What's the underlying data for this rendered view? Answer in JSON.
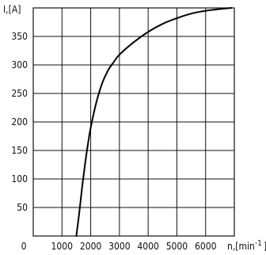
{
  "chart_data": {
    "type": "line",
    "title": "",
    "ylabel": "I,[A]",
    "xlabel": "n,[min",
    "xlabel_sup": "-1",
    "xlabel_close": "]",
    "xlim": [
      0,
      7000
    ],
    "ylim": [
      0,
      400
    ],
    "origin_label": "0",
    "x_ticks": [
      1000,
      2000,
      3000,
      4000,
      5000,
      6000
    ],
    "x_tick_labels": [
      "1000",
      "2000",
      "3000",
      "4000",
      "5000",
      "6000"
    ],
    "y_ticks": [
      50,
      100,
      150,
      200,
      250,
      300,
      350
    ],
    "y_tick_labels": [
      "50",
      "100",
      "150",
      "200",
      "250",
      "300",
      "350"
    ],
    "grid": true,
    "series": [
      {
        "x": [
          1500,
          1600,
          1700,
          1800,
          1900,
          2000,
          2200,
          2400,
          2600,
          2800,
          3000,
          3500,
          4000,
          4500,
          5000,
          5500,
          6000,
          6500,
          6900
        ],
        "y": [
          0,
          40,
          85,
          125,
          160,
          190,
          235,
          268,
          290,
          305,
          318,
          340,
          358,
          372,
          382,
          390,
          395,
          398,
          400
        ],
        "color": "#000000"
      }
    ]
  }
}
